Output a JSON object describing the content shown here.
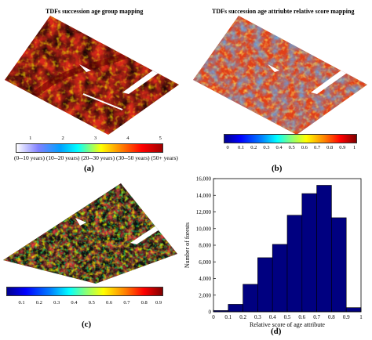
{
  "panel_a": {
    "title": "TDFs succession age group mapping",
    "colorbar_ticks": [
      "1",
      "2",
      "3",
      "4",
      "5"
    ],
    "legend": "(0--10 years) (10--20 years) (20--30 years) (30--50 years) (50+ years)",
    "letter": "(a)"
  },
  "panel_b": {
    "title": "TDFs succession age attriubte relative score mapping",
    "colorbar_ticks": [
      "0",
      "0.1",
      "0.2",
      "0.3",
      "0.4",
      "0.5",
      "0.6",
      "0.7",
      "0.8",
      "0.9",
      "1"
    ],
    "letter": "(b)"
  },
  "panel_c": {
    "colorbar_ticks": [
      "0.1",
      "0.2",
      "0.3",
      "0.4",
      "0.5",
      "0.6",
      "0.7",
      "0.8",
      "0.9"
    ],
    "letter": "(c)"
  },
  "panel_d": {
    "letter": "(d)"
  },
  "colors": {
    "bar_fill": "#000080",
    "map_red": "#d02010",
    "map_blue": "#1060d0"
  },
  "chart_data": {
    "type": "bar",
    "xlabel": "Relative score of age attribute",
    "ylabel": "Number of forests",
    "bin_edges": [
      0,
      0.1,
      0.2,
      0.3,
      0.4,
      0.5,
      0.6,
      0.7,
      0.8,
      0.9,
      1
    ],
    "values": [
      150,
      900,
      3300,
      6500,
      8100,
      11600,
      14200,
      15200,
      11300,
      500
    ],
    "xticks": [
      "0",
      "0.1",
      "0.2",
      "0.3",
      "0.4",
      "0.5",
      "0.6",
      "0.7",
      "0.8",
      "0.9",
      "1"
    ],
    "yticks": [
      "0",
      "2,000",
      "4,000",
      "6,000",
      "8,000",
      "10,000",
      "12,000",
      "14,000",
      "16,000"
    ],
    "xlim": [
      0,
      1
    ],
    "ylim": [
      0,
      16000
    ]
  }
}
